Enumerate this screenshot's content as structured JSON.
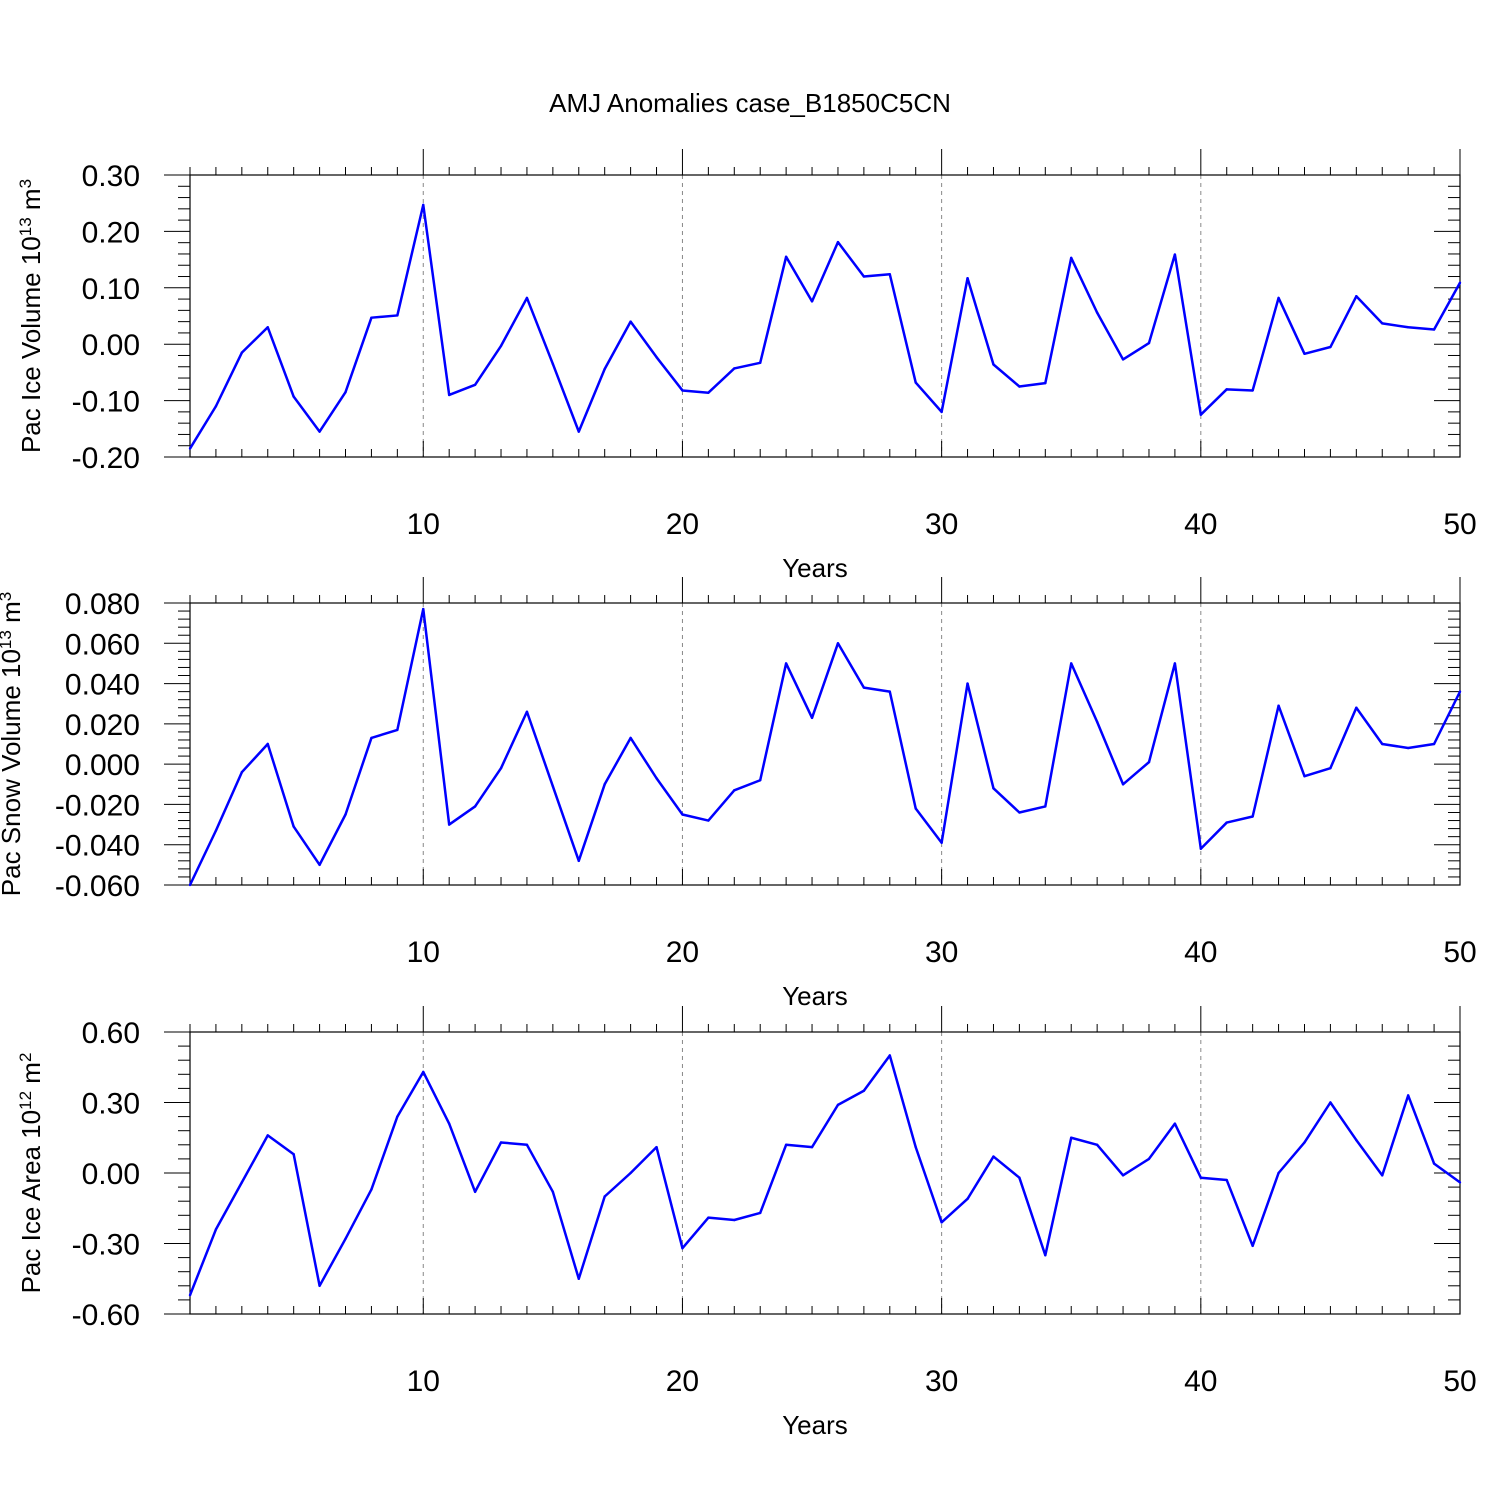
{
  "title": "AMJ Anomalies case_B1850C5CN",
  "colors": {
    "series": "#0000ff",
    "grid": "#888888",
    "axis": "#000000"
  },
  "chart_data": [
    {
      "type": "line",
      "xlabel": "Years",
      "ylabel": "Pac Ice Volume 10",
      "ylabel_sup": "13",
      "ylabel_unit": " m",
      "ylabel_unit_sup": "3",
      "xlim": [
        1,
        50
      ],
      "ylim": [
        -0.2,
        0.3
      ],
      "x_ticks": [
        10,
        20,
        30,
        40,
        50
      ],
      "y_ticks": [
        -0.2,
        -0.1,
        0.0,
        0.1,
        0.2,
        0.3
      ],
      "y_tick_labels": [
        "-0.20",
        "-0.10",
        "0.00",
        "0.10",
        "0.20",
        "0.30"
      ],
      "grid_x": [
        10,
        20,
        30,
        40
      ],
      "series": [
        {
          "values": [
            -0.185,
            -0.11,
            -0.015,
            0.03,
            -0.093,
            -0.155,
            -0.085,
            0.047,
            0.051,
            0.247,
            -0.09,
            -0.072,
            -0.003,
            0.082,
            -0.035,
            -0.155,
            -0.044,
            0.04,
            -0.023,
            -0.082,
            -0.086,
            -0.043,
            -0.033,
            0.155,
            0.076,
            0.181,
            0.12,
            0.124,
            -0.068,
            -0.12,
            0.117,
            -0.036,
            -0.075,
            -0.069,
            0.153,
            0.056,
            -0.027,
            0.002,
            0.159,
            -0.125,
            -0.08,
            -0.082,
            0.082,
            -0.017,
            -0.005,
            0.085,
            0.037,
            0.03,
            0.026,
            0.109
          ]
        }
      ]
    },
    {
      "type": "line",
      "xlabel": "Years",
      "ylabel": "Pac Snow Volume 10",
      "ylabel_sup": "13",
      "ylabel_unit": " m",
      "ylabel_unit_sup": "3",
      "xlim": [
        1,
        50
      ],
      "ylim": [
        -0.06,
        0.08
      ],
      "x_ticks": [
        10,
        20,
        30,
        40,
        50
      ],
      "y_ticks": [
        -0.06,
        -0.04,
        -0.02,
        0.0,
        0.02,
        0.04,
        0.06,
        0.08
      ],
      "y_tick_labels": [
        "-0.060",
        "-0.040",
        "-0.020",
        "0.000",
        "0.020",
        "0.040",
        "0.060",
        "0.080"
      ],
      "grid_x": [
        10,
        20,
        30,
        40
      ],
      "series": [
        {
          "values": [
            -0.06,
            -0.033,
            -0.004,
            0.01,
            -0.031,
            -0.05,
            -0.025,
            0.013,
            0.017,
            0.077,
            -0.03,
            -0.021,
            -0.002,
            0.026,
            -0.011,
            -0.048,
            -0.01,
            0.013,
            -0.007,
            -0.025,
            -0.028,
            -0.013,
            -0.008,
            0.05,
            0.023,
            0.06,
            0.038,
            0.036,
            -0.022,
            -0.039,
            0.04,
            -0.012,
            -0.024,
            -0.021,
            0.05,
            0.021,
            -0.01,
            0.001,
            0.05,
            -0.042,
            -0.029,
            -0.026,
            0.029,
            -0.006,
            -0.002,
            0.028,
            0.01,
            0.008,
            0.01,
            0.036
          ]
        }
      ]
    },
    {
      "type": "line",
      "xlabel": "Years",
      "ylabel": "Pac Ice Area 10",
      "ylabel_sup": "12",
      "ylabel_unit": " m",
      "ylabel_unit_sup": "2",
      "xlim": [
        1,
        50
      ],
      "ylim": [
        -0.6,
        0.6
      ],
      "x_ticks": [
        10,
        20,
        30,
        40,
        50
      ],
      "y_ticks": [
        -0.6,
        -0.3,
        0.0,
        0.3,
        0.6
      ],
      "y_tick_labels": [
        "-0.60",
        "-0.30",
        "0.00",
        "0.30",
        "0.60"
      ],
      "grid_x": [
        10,
        20,
        30,
        40
      ],
      "series": [
        {
          "values": [
            -0.52,
            -0.24,
            -0.04,
            0.16,
            0.08,
            -0.48,
            -0.28,
            -0.07,
            0.24,
            0.43,
            0.21,
            -0.08,
            0.13,
            0.12,
            -0.08,
            -0.45,
            -0.1,
            0.0,
            0.11,
            -0.32,
            -0.19,
            -0.2,
            -0.17,
            0.12,
            0.11,
            0.29,
            0.35,
            0.5,
            0.11,
            -0.21,
            -0.11,
            0.07,
            -0.02,
            -0.35,
            0.15,
            0.12,
            -0.01,
            0.06,
            0.21,
            -0.02,
            -0.03,
            -0.31,
            0.0,
            0.13,
            0.3,
            0.14,
            -0.01,
            0.33,
            0.04,
            -0.04
          ]
        }
      ]
    }
  ]
}
